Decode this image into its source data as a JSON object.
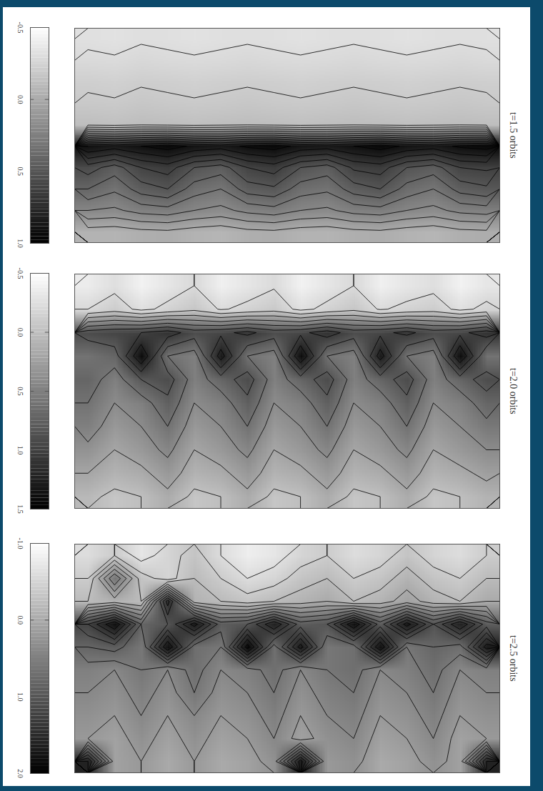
{
  "chart_data": [
    {
      "type": "heatmap",
      "title": "t=1.5 orbits",
      "tick_labels": false,
      "colorbar_range": [
        -0.5,
        1.0
      ],
      "colorbar_ticks": [
        -0.5,
        {
          "value": 0,
          "label": "0.0"
        },
        0.5,
        {
          "value": 1,
          "label": "1.0"
        }
      ],
      "cells": [
        [
          -0.32,
          -0.33,
          -0.31,
          -0.32,
          -0.33,
          -0.32,
          -0.31,
          -0.32,
          -0.33,
          -0.32,
          -0.31,
          -0.32,
          -0.33,
          -0.32,
          -0.31,
          -0.32
        ],
        [
          -0.28,
          -0.29,
          -0.27,
          -0.28,
          -0.29,
          -0.28,
          -0.27,
          -0.28,
          -0.29,
          -0.28,
          -0.27,
          -0.28,
          -0.29,
          -0.28,
          -0.27,
          -0.28
        ],
        [
          -0.22,
          -0.23,
          -0.21,
          -0.22,
          -0.23,
          -0.22,
          -0.21,
          -0.22,
          -0.23,
          -0.22,
          -0.21,
          -0.22,
          -0.23,
          -0.22,
          -0.21,
          -0.22
        ],
        [
          -0.18,
          -0.19,
          -0.17,
          -0.18,
          -0.19,
          -0.18,
          -0.17,
          -0.18,
          -0.19,
          -0.18,
          -0.17,
          -0.18,
          -0.19,
          -0.18,
          -0.17,
          -0.18
        ],
        [
          -0.12,
          -0.13,
          -0.11,
          -0.12,
          -0.13,
          -0.12,
          -0.11,
          -0.12,
          -0.13,
          -0.12,
          -0.11,
          -0.12,
          -0.13,
          -0.12,
          -0.11,
          -0.12
        ],
        [
          0.9,
          0.85,
          0.9,
          0.95,
          0.88,
          0.85,
          0.92,
          0.95,
          0.87,
          0.85,
          0.9,
          0.95,
          0.88,
          0.85,
          0.92,
          0.95
        ],
        [
          0.55,
          0.45,
          0.6,
          0.65,
          0.5,
          0.45,
          0.6,
          0.65,
          0.5,
          0.45,
          0.62,
          0.65,
          0.5,
          0.45,
          0.6,
          0.62
        ],
        [
          0.4,
          0.32,
          0.45,
          0.5,
          0.35,
          0.3,
          0.45,
          0.48,
          0.35,
          0.32,
          0.45,
          0.5,
          0.36,
          0.3,
          0.44,
          0.48
        ],
        [
          0.2,
          0.18,
          0.24,
          0.26,
          0.2,
          0.17,
          0.23,
          0.26,
          0.2,
          0.18,
          0.24,
          0.26,
          0.2,
          0.17,
          0.23,
          0.25
        ],
        [
          -0.05,
          -0.06,
          -0.03,
          -0.02,
          -0.05,
          -0.07,
          -0.03,
          -0.02,
          -0.05,
          -0.06,
          -0.03,
          -0.02,
          -0.05,
          -0.07,
          -0.03,
          -0.02
        ]
      ]
    },
    {
      "type": "heatmap",
      "title": "t=2.0 orbits",
      "tick_labels": false,
      "colorbar_range": [
        -0.5,
        1.5
      ],
      "colorbar_ticks": [
        -0.5,
        {
          "value": 0,
          "label": "0.0"
        },
        0.5,
        {
          "value": 1,
          "label": "1.0"
        },
        1.5
      ],
      "cells": [
        [
          -0.35,
          -0.25,
          -0.4,
          -0.3,
          -0.2,
          -0.38,
          -0.3,
          -0.22,
          -0.4,
          -0.3,
          -0.2,
          -0.38,
          -0.3,
          -0.25,
          -0.4,
          -0.3
        ],
        [
          -0.2,
          -0.1,
          -0.25,
          -0.15,
          -0.05,
          -0.22,
          -0.15,
          -0.08,
          -0.25,
          -0.15,
          -0.05,
          -0.22,
          -0.15,
          -0.1,
          -0.25,
          -0.15
        ],
        [
          0.9,
          0.95,
          1.0,
          1.1,
          0.9,
          0.95,
          1.05,
          0.9,
          0.95,
          1.1,
          0.9,
          0.95,
          1.05,
          0.9,
          0.95,
          1.1
        ],
        [
          0.6,
          0.7,
          1.4,
          0.6,
          0.5,
          1.3,
          0.6,
          0.5,
          1.4,
          0.6,
          0.5,
          1.3,
          0.6,
          0.5,
          1.4,
          0.6
        ],
        [
          0.7,
          0.5,
          0.8,
          0.9,
          0.5,
          0.7,
          0.9,
          0.5,
          0.7,
          0.9,
          0.5,
          0.7,
          0.9,
          0.5,
          0.7,
          0.9
        ],
        [
          0.6,
          0.4,
          0.5,
          0.75,
          0.4,
          0.5,
          0.75,
          0.4,
          0.5,
          0.75,
          0.4,
          0.5,
          0.75,
          0.4,
          0.5,
          0.7
        ],
        [
          0.5,
          0.3,
          0.4,
          0.6,
          0.3,
          0.4,
          0.6,
          0.3,
          0.4,
          0.6,
          0.3,
          0.4,
          0.6,
          0.3,
          0.4,
          0.55
        ],
        [
          0.35,
          0.2,
          0.3,
          0.45,
          0.2,
          0.3,
          0.45,
          0.2,
          0.3,
          0.45,
          0.2,
          0.3,
          0.45,
          0.2,
          0.3,
          0.4
        ],
        [
          0.2,
          0.1,
          0.15,
          0.3,
          0.1,
          0.15,
          0.3,
          0.1,
          0.15,
          0.3,
          0.1,
          0.15,
          0.3,
          0.1,
          0.15,
          0.25
        ],
        [
          0.05,
          -0.05,
          0.0,
          0.15,
          -0.05,
          0.0,
          0.15,
          -0.05,
          0.0,
          0.15,
          -0.05,
          0.0,
          0.15,
          -0.05,
          0.0,
          0.1
        ]
      ]
    },
    {
      "type": "heatmap",
      "title": "t=2.5 orbits",
      "tick_labels": false,
      "colorbar_range": [
        -1.0,
        2.0
      ],
      "colorbar_ticks": [
        {
          "value": -1,
          "label": "-1.0"
        },
        {
          "value": 0,
          "label": "0.0"
        },
        {
          "value": 1,
          "label": "1.0"
        },
        {
          "value": 2,
          "label": "2.0"
        }
      ],
      "cells": [
        [
          -0.6,
          -0.4,
          -0.7,
          -0.5,
          -0.3,
          -0.6,
          -0.8,
          -0.7,
          -0.5,
          -0.4,
          -0.6,
          -0.5,
          -0.3,
          -0.5,
          -0.6,
          -0.4
        ],
        [
          -0.4,
          0.6,
          -0.3,
          -0.5,
          -0.2,
          -0.4,
          -0.6,
          -0.5,
          -0.3,
          -0.2,
          -0.4,
          -0.3,
          -0.1,
          -0.3,
          -0.4,
          -0.2
        ],
        [
          -0.2,
          -0.1,
          -0.2,
          1.5,
          -0.1,
          -0.2,
          -0.3,
          -0.2,
          -0.1,
          0.0,
          -0.2,
          -0.1,
          0.1,
          -0.1,
          -0.2,
          0.0
        ],
        [
          1.2,
          1.8,
          0.8,
          1.0,
          1.7,
          0.9,
          1.0,
          1.6,
          0.9,
          1.0,
          1.8,
          0.9,
          1.7,
          1.0,
          1.6,
          0.9
        ],
        [
          0.8,
          0.9,
          0.6,
          1.8,
          0.7,
          0.6,
          1.9,
          0.7,
          1.7,
          0.6,
          0.7,
          1.8,
          0.6,
          0.8,
          0.7,
          1.7
        ],
        [
          0.5,
          0.4,
          0.6,
          0.4,
          0.7,
          0.4,
          0.5,
          0.7,
          0.4,
          0.6,
          0.7,
          0.4,
          0.5,
          0.7,
          0.4,
          0.5
        ],
        [
          0.4,
          0.3,
          0.5,
          0.3,
          0.6,
          0.3,
          0.4,
          0.6,
          0.3,
          0.5,
          0.6,
          0.3,
          0.4,
          0.6,
          0.3,
          0.4
        ],
        [
          0.3,
          0.2,
          0.4,
          0.2,
          0.4,
          0.2,
          0.3,
          0.5,
          0.2,
          0.4,
          0.5,
          0.2,
          0.3,
          0.5,
          0.2,
          0.3
        ],
        [
          0.2,
          0.1,
          0.3,
          0.1,
          0.3,
          0.1,
          0.2,
          0.4,
          0.1,
          0.3,
          0.4,
          0.1,
          0.2,
          0.4,
          0.1,
          0.2
        ],
        [
          1.6,
          0.1,
          0.2,
          0.0,
          0.2,
          0.0,
          0.1,
          0.3,
          1.7,
          0.2,
          0.3,
          0.0,
          0.1,
          0.3,
          0.1,
          1.6
        ]
      ]
    }
  ]
}
